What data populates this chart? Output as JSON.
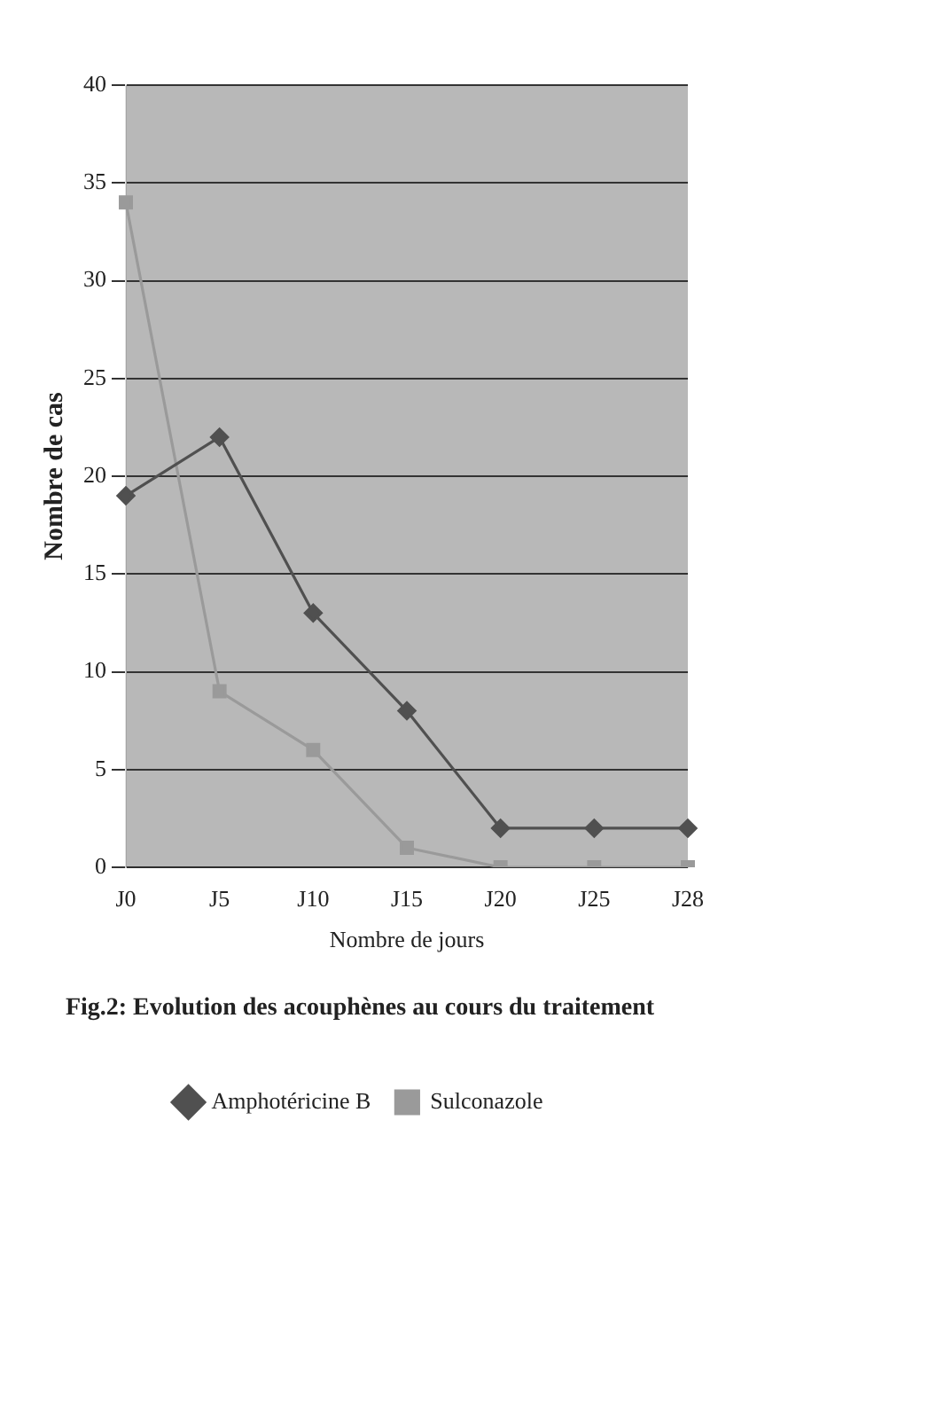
{
  "chart_data": {
    "type": "line",
    "title": "Fig.2: Evolution des acouphènes au cours du traitement",
    "xlabel": "Nombre de jours",
    "ylabel": "Nombre de cas",
    "categories": [
      "J0",
      "J5",
      "J10",
      "J15",
      "J20",
      "J25",
      "J28"
    ],
    "series": [
      {
        "name": "Amphotéricine B",
        "color": "#505050",
        "marker": "diamond",
        "values": [
          19,
          22,
          13,
          8,
          2,
          2,
          2
        ]
      },
      {
        "name": "Sulconazole",
        "color": "#9a9a9a",
        "marker": "square",
        "values": [
          34,
          9,
          6,
          1,
          0,
          0,
          0
        ]
      }
    ],
    "ylim": [
      0,
      40
    ],
    "yticks": [
      0,
      5,
      10,
      15,
      20,
      25,
      30,
      35,
      40
    ],
    "grid": "y",
    "legend": "bottom",
    "line_style": "solid"
  }
}
